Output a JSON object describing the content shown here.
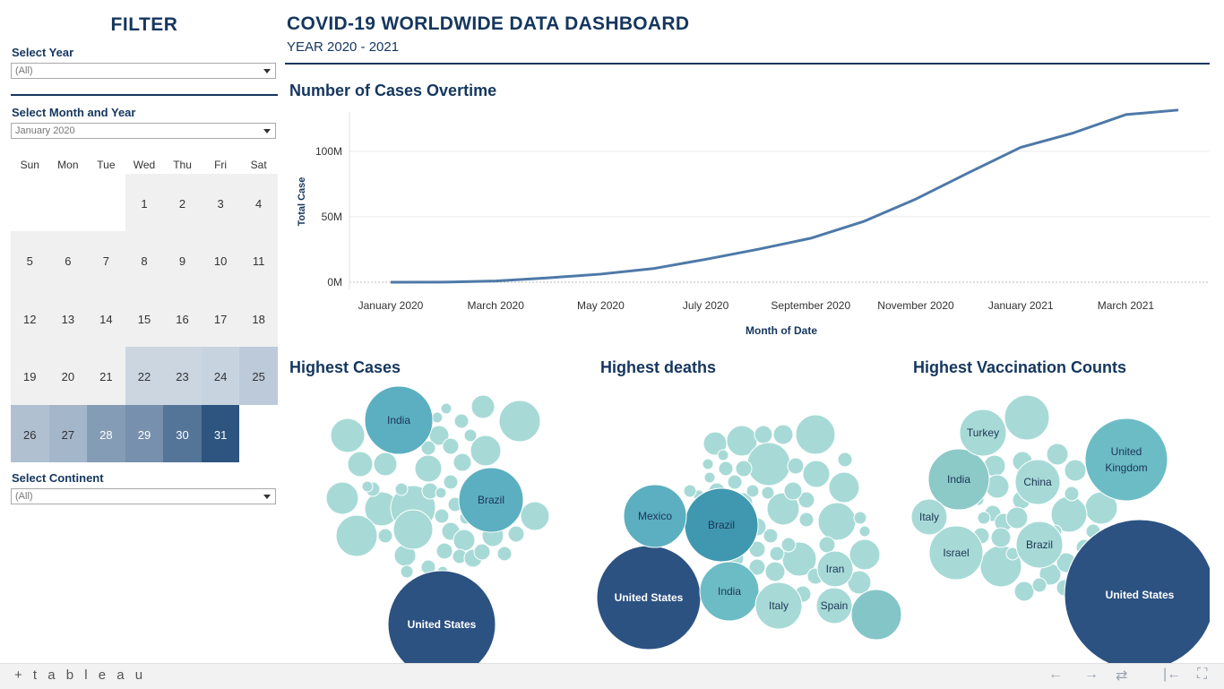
{
  "sidebar": {
    "title": "FILTER",
    "year_filter": {
      "label": "Select Year",
      "value": "(All)"
    },
    "month_filter": {
      "label": "Select Month and Year",
      "value": "January 2020"
    },
    "continent_filter": {
      "label": "Select Continent",
      "value": "(All)"
    },
    "calendar": {
      "weekdays": [
        "Sun",
        "Mon",
        "Tue",
        "Wed",
        "Thu",
        "Fri",
        "Sat"
      ],
      "weeks": [
        [
          null,
          null,
          null,
          1,
          2,
          3,
          4
        ],
        [
          5,
          6,
          7,
          8,
          9,
          10,
          11
        ],
        [
          12,
          13,
          14,
          15,
          16,
          17,
          18
        ],
        [
          19,
          20,
          21,
          22,
          23,
          24,
          25
        ],
        [
          26,
          27,
          28,
          29,
          30,
          31,
          null
        ]
      ],
      "intensity": {
        "1": 0,
        "2": 0,
        "3": 0,
        "4": 0,
        "5": 0,
        "6": 0,
        "7": 0,
        "8": 0,
        "9": 0,
        "10": 0,
        "11": 0,
        "12": 0,
        "13": 0,
        "14": 0,
        "15": 0,
        "16": 0,
        "17": 0,
        "18": 0,
        "19": 0,
        "20": 0,
        "21": 0,
        "22": 0.1,
        "23": 0.1,
        "24": 0.12,
        "25": 0.18,
        "26": 0.25,
        "27": 0.32,
        "28": 0.5,
        "29": 0.58,
        "30": 0.78,
        "31": 1.0
      }
    }
  },
  "header": {
    "title": "COVID-19 WORLDWIDE DATA DASHBOARD",
    "subtitle": "YEAR 2020 - 2021"
  },
  "line_section": {
    "title": "Number of Cases Overtime"
  },
  "bubbles": {
    "cases": {
      "title": "Highest Cases"
    },
    "deaths": {
      "title": "Highest deaths"
    },
    "vaccination": {
      "title": "Highest Vaccination Counts"
    }
  },
  "chart_data": [
    {
      "type": "line",
      "xlabel": "Month of Date",
      "ylabel": "Total Case",
      "x_tick_labels": [
        "January 2020",
        "March 2020",
        "May 2020",
        "July 2020",
        "September 2020",
        "November 2020",
        "January 2021",
        "March 2021"
      ],
      "y_tick_labels": [
        "0M",
        "50M",
        "100M"
      ],
      "ylim": [
        0,
        130
      ],
      "grid": true,
      "series": [
        {
          "x": [
            "2020-01",
            "2020-02",
            "2020-03",
            "2020-04",
            "2020-05",
            "2020-06",
            "2020-07",
            "2020-08",
            "2020-09",
            "2020-10",
            "2020-11",
            "2020-12",
            "2021-01",
            "2021-02",
            "2021-03",
            "2021-04"
          ],
          "values_millions": [
            0.01,
            0.1,
            0.9,
            3.3,
            6.2,
            10.4,
            17.5,
            25.2,
            33.6,
            46.3,
            63.5,
            83.5,
            103.0,
            114.0,
            128.0,
            131.5
          ]
        }
      ],
      "color": "#4e79a7"
    },
    {
      "type": "bubble",
      "title": "Highest Cases",
      "labeled": [
        {
          "label": "United States",
          "relative_size": 1.0
        },
        {
          "label": "India",
          "relative_size": 0.62
        },
        {
          "label": "Brazil",
          "relative_size": 0.6
        }
      ]
    },
    {
      "type": "bubble",
      "title": "Highest deaths",
      "labeled": [
        {
          "label": "United States",
          "relative_size": 1.0
        },
        {
          "label": "Brazil",
          "relative_size": 0.72
        },
        {
          "label": "Mexico",
          "relative_size": 0.6
        },
        {
          "label": "India",
          "relative_size": 0.57
        },
        {
          "label": "Italy",
          "relative_size": 0.45
        },
        {
          "label": "Iran",
          "relative_size": 0.35
        },
        {
          "label": "Spain",
          "relative_size": 0.34
        }
      ]
    },
    {
      "type": "bubble",
      "title": "Highest Vaccination Counts",
      "labeled": [
        {
          "label": "United States",
          "relative_size": 1.0
        },
        {
          "label": "United Kingdom",
          "relative_size": 0.55
        },
        {
          "label": "India",
          "relative_size": 0.41
        },
        {
          "label": "China",
          "relative_size": 0.32
        },
        {
          "label": "Israel",
          "relative_size": 0.36
        },
        {
          "label": "Brazil",
          "relative_size": 0.32
        },
        {
          "label": "Turkey",
          "relative_size": 0.3
        },
        {
          "label": "Italy",
          "relative_size": 0.25
        }
      ]
    }
  ],
  "footer": {
    "logo": "+ t a b l e a u",
    "nav": [
      "←",
      "→",
      "⇄",
      "|←",
      "⛶"
    ]
  }
}
